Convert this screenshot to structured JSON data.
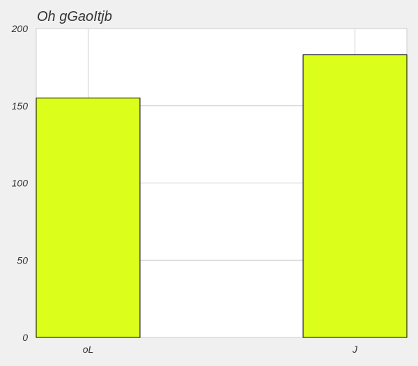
{
  "chart_data": {
    "type": "bar",
    "title": "Oh gGaoItjb",
    "xlabel": "",
    "ylabel": "",
    "categories": [
      "oL",
      "J"
    ],
    "values": [
      155,
      183
    ],
    "ylim": [
      0,
      200
    ],
    "yticks": [
      0,
      50,
      100,
      150,
      200
    ],
    "grid": true,
    "legend": "none"
  },
  "colors": {
    "background": "#f0f0f0",
    "plot_area": "#ffffff",
    "bar_fill": "#dbff1a",
    "bar_edge": "#000000",
    "grid": "#cccccc",
    "text": "#333333"
  }
}
